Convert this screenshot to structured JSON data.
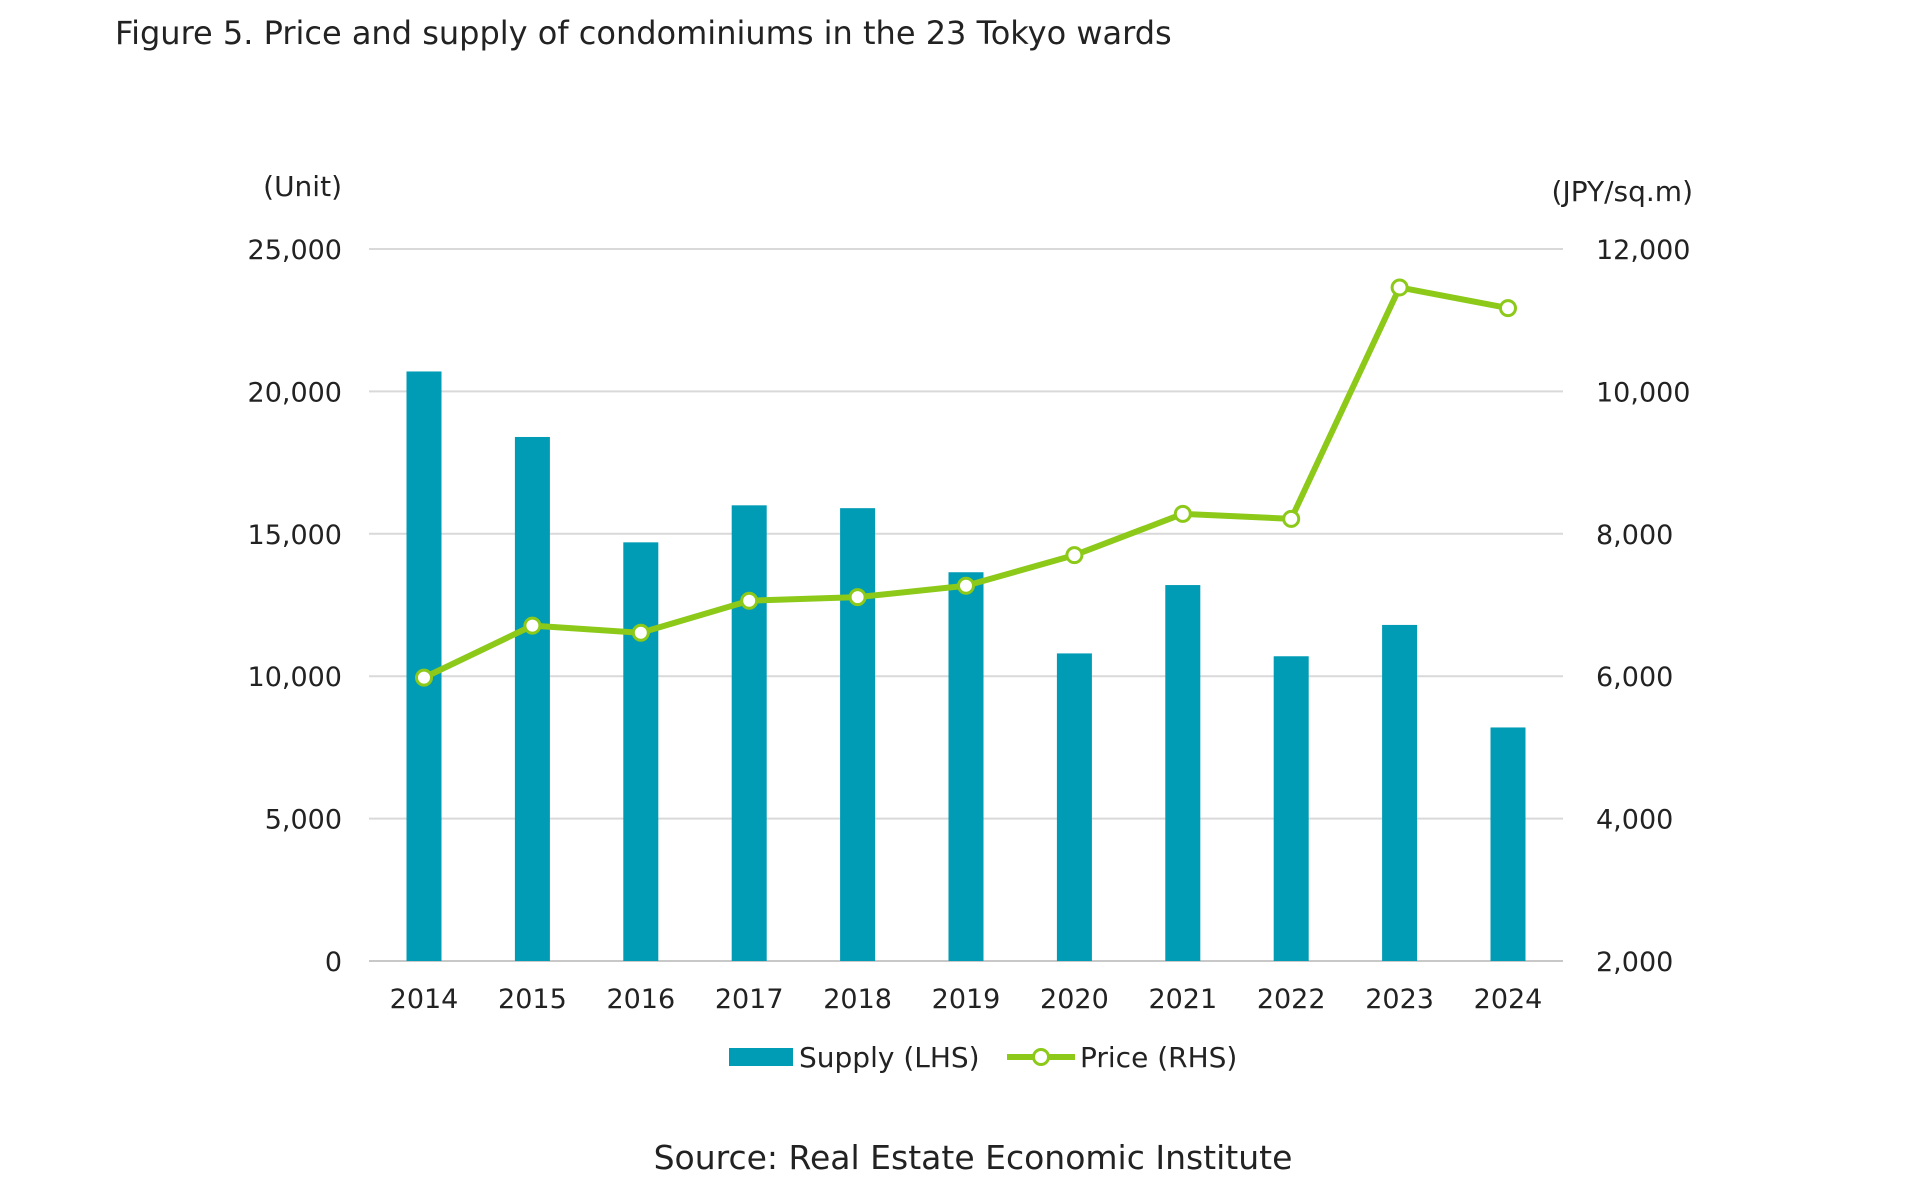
{
  "chart_data": {
    "type": "bar+line",
    "title": "Figure 5. Price and supply of condominiums in the 23 Tokyo wards",
    "source": "Source: Real Estate Economic Institute",
    "categories": [
      "2014",
      "2015",
      "2016",
      "2017",
      "2018",
      "2019",
      "2020",
      "2021",
      "2022",
      "2023",
      "2024"
    ],
    "left_axis": {
      "label": "(Unit)",
      "range": [
        0,
        25000
      ],
      "ticks": [
        "0",
        "5,000",
        "10,000",
        "15,000",
        "20,000",
        "25,000"
      ]
    },
    "right_axis": {
      "label": "(JPY/sq.m)",
      "range": [
        2000,
        12000
      ],
      "ticks": [
        "2,000",
        "4,000",
        "6,000",
        "8,000",
        "10,000",
        "12,000"
      ]
    },
    "grid": true,
    "legend_placement": "bottom",
    "series": [
      {
        "name": "Supply (LHS)",
        "type": "bar",
        "axis": "left",
        "color": "#009bb4",
        "values": [
          20700,
          18400,
          14700,
          16000,
          15900,
          13650,
          10800,
          13200,
          10700,
          11800,
          8200
        ]
      },
      {
        "name": "Price (RHS)",
        "type": "line",
        "axis": "right",
        "color": "#8cc919",
        "values": [
          5980,
          6710,
          6610,
          7060,
          7110,
          7270,
          7700,
          8280,
          8210,
          11460,
          11170
        ]
      }
    ]
  }
}
